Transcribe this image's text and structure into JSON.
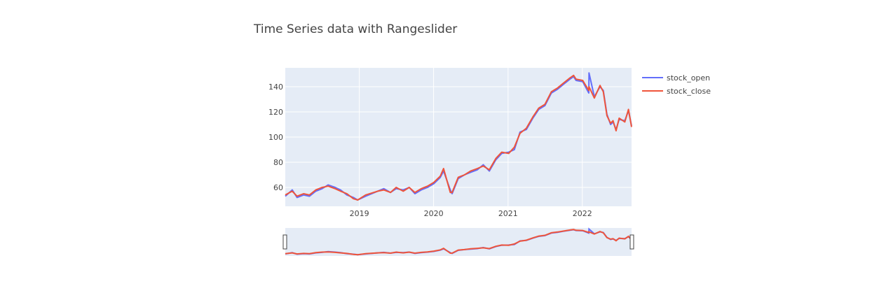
{
  "chart_data": {
    "type": "line",
    "title": "Time Series data with Rangeslider",
    "xlabel": "",
    "ylabel": "",
    "x_axis_type": "date",
    "xlim": [
      "2018-01-02",
      "2022-08-31"
    ],
    "ylim": [
      45,
      155
    ],
    "x_ticks": [
      {
        "value": "2019-01-01",
        "label": "2019"
      },
      {
        "value": "2020-01-01",
        "label": "2020"
      },
      {
        "value": "2021-01-01",
        "label": "2021"
      },
      {
        "value": "2022-01-01",
        "label": "2022"
      }
    ],
    "y_ticks": [
      60,
      80,
      100,
      120,
      140
    ],
    "grid": true,
    "legend_position": "top-right",
    "rangeslider": true,
    "colors": {
      "stock_open": "#636efa",
      "stock_close": "#ef553b",
      "plot_bg": "#e5ecf6"
    },
    "series": [
      {
        "name": "stock_open",
        "x": [
          "2018-01-02",
          "2018-02-05",
          "2018-03-01",
          "2018-04-02",
          "2018-05-01",
          "2018-06-01",
          "2018-07-02",
          "2018-08-01",
          "2018-09-04",
          "2018-10-01",
          "2018-11-01",
          "2018-12-03",
          "2018-12-24",
          "2019-02-01",
          "2019-04-01",
          "2019-05-01",
          "2019-06-03",
          "2019-07-01",
          "2019-08-05",
          "2019-09-03",
          "2019-10-01",
          "2019-11-01",
          "2019-12-02",
          "2020-01-02",
          "2020-02-03",
          "2020-02-19",
          "2020-03-23",
          "2020-04-01",
          "2020-05-01",
          "2020-06-01",
          "2020-07-01",
          "2020-08-03",
          "2020-09-01",
          "2020-10-01",
          "2020-11-02",
          "2020-12-01",
          "2021-01-04",
          "2021-02-01",
          "2021-03-01",
          "2021-04-01",
          "2021-05-03",
          "2021-06-01",
          "2021-07-01",
          "2021-08-02",
          "2021-09-01",
          "2021-10-01",
          "2021-11-01",
          "2021-11-19",
          "2021-12-01",
          "2022-01-03",
          "2022-02-02",
          "2022-02-03",
          "2022-03-01",
          "2022-03-29",
          "2022-04-14",
          "2022-05-02",
          "2022-05-20",
          "2022-06-01",
          "2022-06-16",
          "2022-07-01",
          "2022-07-29",
          "2022-08-16",
          "2022-08-31"
        ],
        "values": [
          53,
          58,
          52,
          54,
          53,
          57,
          59,
          62,
          60,
          58,
          54,
          52,
          50,
          53,
          57,
          59,
          56,
          59,
          58,
          60,
          55,
          58,
          60,
          63,
          68,
          73,
          58,
          55,
          67,
          70,
          72,
          74,
          78,
          73,
          82,
          87,
          88,
          90,
          104,
          106,
          115,
          122,
          125,
          135,
          138,
          142,
          146,
          148,
          145,
          144,
          135,
          151,
          132,
          140,
          137,
          118,
          110,
          112,
          106,
          114,
          113,
          121,
          109
        ]
      },
      {
        "name": "stock_close",
        "x": [
          "2018-01-02",
          "2018-02-05",
          "2018-03-01",
          "2018-04-02",
          "2018-05-01",
          "2018-06-01",
          "2018-07-02",
          "2018-08-01",
          "2018-09-04",
          "2018-10-01",
          "2018-11-01",
          "2018-12-03",
          "2018-12-24",
          "2019-02-01",
          "2019-04-01",
          "2019-05-01",
          "2019-06-03",
          "2019-07-01",
          "2019-08-05",
          "2019-09-03",
          "2019-10-01",
          "2019-11-01",
          "2019-12-02",
          "2020-01-02",
          "2020-02-03",
          "2020-02-19",
          "2020-03-23",
          "2020-04-01",
          "2020-05-01",
          "2020-06-01",
          "2020-07-01",
          "2020-08-03",
          "2020-09-01",
          "2020-10-01",
          "2020-11-02",
          "2020-12-01",
          "2021-01-04",
          "2021-02-01",
          "2021-03-01",
          "2021-04-01",
          "2021-05-03",
          "2021-06-01",
          "2021-07-01",
          "2021-08-02",
          "2021-09-01",
          "2021-10-01",
          "2021-11-01",
          "2021-11-19",
          "2021-12-01",
          "2022-01-03",
          "2022-02-02",
          "2022-02-03",
          "2022-03-01",
          "2022-03-29",
          "2022-04-14",
          "2022-05-02",
          "2022-05-20",
          "2022-06-01",
          "2022-06-16",
          "2022-07-01",
          "2022-07-29",
          "2022-08-16",
          "2022-08-31"
        ],
        "values": [
          54,
          57,
          53,
          55,
          54,
          58,
          60,
          61,
          59,
          57,
          55,
          51,
          50,
          54,
          57,
          58,
          56,
          60,
          57,
          60,
          56,
          59,
          61,
          64,
          69,
          75,
          56,
          56,
          68,
          70,
          73,
          75,
          77,
          74,
          83,
          88,
          87,
          92,
          103,
          107,
          116,
          123,
          126,
          136,
          139,
          143,
          147,
          149,
          146,
          145,
          137,
          140,
          131,
          141,
          136,
          117,
          111,
          113,
          105,
          115,
          112,
          122,
          108
        ]
      }
    ]
  },
  "legend": {
    "items": [
      {
        "label": "stock_open",
        "color": "#636efa"
      },
      {
        "label": "stock_close",
        "color": "#ef553b"
      }
    ]
  }
}
